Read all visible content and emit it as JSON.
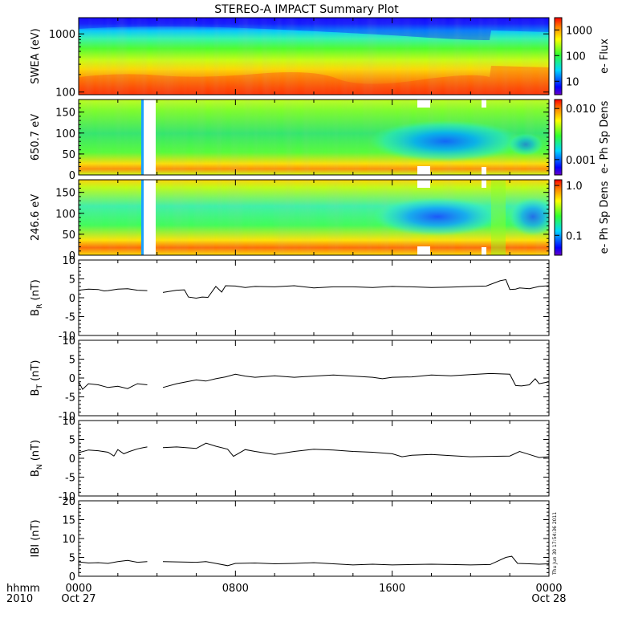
{
  "title": "STEREO-A IMPACT Summary Plot",
  "x_axis": {
    "row1_label": "hhmm",
    "row2_label": "2010",
    "tick_times": [
      "0000",
      "0800",
      "1600",
      "0000"
    ],
    "tick_dates": [
      "Oct 27",
      "",
      "",
      "Oct 28"
    ],
    "range_hours": [
      0,
      24
    ]
  },
  "timestamp": "Thu Jun 30 17:54:36 2011",
  "chart_data": [
    {
      "type": "heatmap",
      "id": "swea",
      "ylabel": "SWEA (eV)",
      "scale": "log",
      "ylim": [
        90,
        1900
      ],
      "yticks": [
        "100",
        "1000"
      ],
      "colorbar": {
        "label": "e- Flux",
        "ticks": [
          "10",
          "100",
          "1000"
        ],
        "scale": "log",
        "range": [
          3,
          3000
        ]
      },
      "gaps_hours": [],
      "contour_bands": [
        {
          "color": "#0000ff",
          "energy_ev": 1800
        },
        {
          "color": "#00e6ff",
          "energy_ev": 1000
        },
        {
          "color": "#39ff3a",
          "energy_ev": 550
        },
        {
          "color": "#ffff00",
          "energy_ev": 260
        },
        {
          "color": "#ff6a00",
          "energy_ev": 140
        }
      ]
    },
    {
      "type": "heatmap",
      "id": "pad650",
      "ylabel": "650.7 eV",
      "ylim": [
        0,
        180
      ],
      "yticks": [
        "0",
        "50",
        "100",
        "150"
      ],
      "colorbar": {
        "label": "e- Ph Sp Dens",
        "ticks": [
          "0.001",
          "0.010"
        ],
        "scale": "log",
        "range": [
          0.0005,
          0.015
        ]
      },
      "gaps_hours": [
        [
          3.55,
          4.25
        ]
      ],
      "min_region_hours": [
        15.5,
        21.8
      ],
      "min_pitch_deg": 75
    },
    {
      "type": "heatmap",
      "id": "pad246",
      "ylabel": "246.6 eV",
      "ylim": [
        0,
        180
      ],
      "yticks": [
        "0",
        "50",
        "100",
        "150"
      ],
      "colorbar": {
        "label": "e- Ph Sp Dens",
        "ticks": [
          "0.1",
          "1.0"
        ],
        "scale": "log",
        "range": [
          0.04,
          1.3
        ]
      },
      "gaps_hours": [
        [
          3.55,
          4.25
        ]
      ],
      "min_region_hours": [
        15.0,
        24.0
      ],
      "min_pitch_deg": 95
    },
    {
      "type": "line",
      "id": "br",
      "ylabel": "B",
      "ylabel_sub": "R",
      "ylabel_unit": " (nT)",
      "ylim": [
        -10,
        10
      ],
      "yticks": [
        "-10",
        "-5",
        "0",
        "5",
        "10"
      ],
      "x": [
        0,
        0.5,
        1,
        1.3,
        1.5,
        2,
        2.5,
        3,
        3.5,
        null,
        4.3,
        5,
        5.4,
        5.6,
        6,
        6.3,
        6.6,
        7,
        7.3,
        7.5,
        8,
        8.5,
        9,
        10,
        11,
        12,
        13,
        14,
        15,
        16,
        17,
        18,
        19,
        20,
        20.8,
        21.5,
        21.8,
        22.0,
        22.3,
        22.5,
        23,
        23.5,
        24
      ],
      "y": [
        2.0,
        2.3,
        2.2,
        1.8,
        1.9,
        2.3,
        2.4,
        2.0,
        1.9,
        null,
        1.4,
        2.0,
        2.1,
        0.2,
        -0.1,
        0.2,
        0.1,
        3.0,
        1.5,
        3.2,
        3.1,
        2.7,
        3.0,
        2.9,
        3.2,
        2.6,
        2.9,
        2.9,
        2.7,
        3.0,
        2.9,
        2.7,
        2.8,
        3.0,
        3.1,
        4.5,
        4.8,
        2.2,
        2.3,
        2.6,
        2.4,
        3.0,
        3.2
      ]
    },
    {
      "type": "line",
      "id": "bt",
      "ylabel": "B",
      "ylabel_sub": "T",
      "ylabel_unit": " (nT)",
      "ylim": [
        -10,
        10
      ],
      "yticks": [
        "-10",
        "-5",
        "0",
        "5",
        "10"
      ],
      "x": [
        0,
        0.2,
        0.5,
        1,
        1.5,
        2,
        2.5,
        2.8,
        3,
        3.5,
        null,
        4.3,
        5,
        5.5,
        6,
        6.5,
        7,
        7.5,
        8,
        8.5,
        9,
        10,
        11,
        12,
        13,
        14,
        15,
        15.5,
        16,
        17,
        18,
        19,
        20,
        21,
        22,
        22.3,
        22.6,
        23,
        23.3,
        23.5,
        24
      ],
      "y": [
        -1,
        -3,
        -1.5,
        -1.8,
        -2.5,
        -2.2,
        -2.8,
        -2,
        -1.5,
        -1.8,
        null,
        -2.5,
        -1.5,
        -1.0,
        -0.5,
        -0.8,
        -0.2,
        0.3,
        1.0,
        0.5,
        0.2,
        0.6,
        0.2,
        0.5,
        0.8,
        0.5,
        0.2,
        -0.2,
        0.2,
        0.3,
        0.8,
        0.6,
        0.9,
        1.2,
        1.0,
        -2.0,
        -2.1,
        -1.8,
        -0.2,
        -1.5,
        -1.0
      ]
    },
    {
      "type": "line",
      "id": "bn",
      "ylabel": "B",
      "ylabel_sub": "N",
      "ylabel_unit": " (nT)",
      "ylim": [
        -10,
        10
      ],
      "yticks": [
        "-10",
        "-5",
        "0",
        "5",
        "10"
      ],
      "x": [
        0,
        0.5,
        1,
        1.5,
        1.8,
        2,
        2.3,
        2.6,
        3,
        3.3,
        3.5,
        null,
        4.3,
        5,
        6,
        6.5,
        7,
        7.6,
        7.9,
        8.5,
        9,
        10,
        11,
        12,
        13,
        14,
        15,
        16,
        16.5,
        17,
        18,
        19,
        20,
        21,
        22,
        22.5,
        23,
        23.5,
        24
      ],
      "y": [
        1.5,
        2.2,
        2.0,
        1.6,
        0.6,
        2.3,
        1.2,
        1.8,
        2.5,
        2.8,
        3.0,
        null,
        2.8,
        3.0,
        2.6,
        4.0,
        3.2,
        2.4,
        0.5,
        2.3,
        1.8,
        1.0,
        1.8,
        2.4,
        2.2,
        1.8,
        1.6,
        1.2,
        0.4,
        0.8,
        1.0,
        0.7,
        0.4,
        0.5,
        0.6,
        1.8,
        1.0,
        0.2,
        0.4
      ]
    },
    {
      "type": "line",
      "id": "bmag",
      "ylabel": "IBI (nT)",
      "ylim": [
        0,
        20
      ],
      "yticks": [
        "0",
        "5",
        "10",
        "15",
        "20"
      ],
      "x": [
        0,
        0.5,
        1,
        1.5,
        2,
        2.5,
        3,
        3.5,
        null,
        4.3,
        5,
        6,
        6.5,
        7,
        7.6,
        8,
        9,
        10,
        11,
        12,
        13,
        14,
        15,
        16,
        17,
        18,
        19,
        20,
        21,
        21.8,
        22.1,
        22.4,
        23,
        23.5,
        24
      ],
      "y": [
        3.8,
        3.5,
        3.6,
        3.4,
        3.9,
        4.2,
        3.7,
        3.9,
        null,
        3.9,
        3.8,
        3.7,
        3.9,
        3.4,
        2.8,
        3.4,
        3.5,
        3.3,
        3.4,
        3.6,
        3.3,
        3.0,
        3.2,
        3.0,
        3.1,
        3.2,
        3.1,
        3.0,
        3.1,
        5.0,
        5.3,
        3.4,
        3.3,
        3.2,
        3.3
      ]
    }
  ]
}
